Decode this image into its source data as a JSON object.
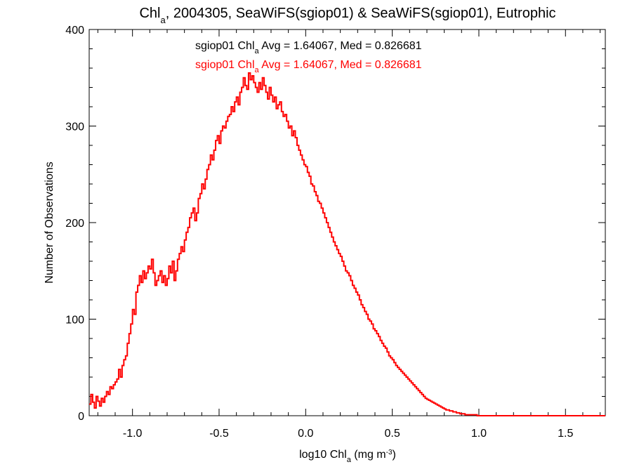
{
  "chart_data": {
    "type": "histogram",
    "title": {
      "prefix": "Chl",
      "subscript": "a",
      "suffix": ", 2004305, SeaWiFS(sgiop01) & SeaWiFS(sgiop01), Eutrophic"
    },
    "xlabel": {
      "prefix": "log10 Chl",
      "subscript": "a",
      "middle": " (mg m",
      "superscript": "-3",
      "suffix": ")"
    },
    "ylabel": "Number of Observations",
    "xlim": [
      -1.25,
      1.73
    ],
    "ylim": [
      0,
      400
    ],
    "x_ticks": [
      "-1.0",
      "-0.5",
      "0.0",
      "0.5",
      "1.0",
      "1.5"
    ],
    "x_tick_values": [
      -1.0,
      -0.5,
      0.0,
      0.5,
      1.0,
      1.5
    ],
    "y_ticks": [
      "0",
      "100",
      "200",
      "300",
      "400"
    ],
    "y_tick_values": [
      0,
      100,
      200,
      300,
      400
    ],
    "annotations": [
      {
        "prefix": "sgiop01 Chl",
        "subscript": "a",
        "suffix": " Avg = 1.64067, Med = 0.826681",
        "color": "#000000"
      },
      {
        "prefix": "sgiop01 Chl",
        "subscript": "a",
        "suffix": " Avg = 1.64067, Med = 0.826681",
        "color": "#ff0000"
      }
    ],
    "series": [
      {
        "color": "#ff0000",
        "bin_start": -1.25,
        "bin_width": 0.01,
        "values": [
          12,
          22,
          14,
          8,
          20,
          15,
          10,
          18,
          14,
          20,
          25,
          22,
          30,
          28,
          32,
          35,
          38,
          48,
          40,
          52,
          58,
          62,
          75,
          85,
          95,
          110,
          105,
          128,
          135,
          145,
          138,
          150,
          142,
          148,
          155,
          152,
          162,
          148,
          135,
          140,
          145,
          150,
          138,
          145,
          135,
          142,
          155,
          148,
          160,
          140,
          150,
          162,
          168,
          175,
          170,
          182,
          190,
          195,
          205,
          210,
          215,
          202,
          210,
          225,
          230,
          240,
          235,
          245,
          255,
          260,
          270,
          265,
          275,
          285,
          290,
          282,
          295,
          300,
          298,
          305,
          310,
          312,
          320,
          315,
          325,
          330,
          322,
          335,
          340,
          350,
          342,
          338,
          355,
          348,
          352,
          345,
          340,
          335,
          345,
          338,
          350,
          342,
          335,
          328,
          340,
          332,
          325,
          330,
          318,
          322,
          325,
          315,
          310,
          312,
          305,
          298,
          300,
          290,
          295,
          288,
          280,
          275,
          270,
          265,
          260,
          258,
          252,
          248,
          240,
          238,
          232,
          228,
          222,
          220,
          215,
          210,
          205,
          200,
          195,
          190,
          185,
          180,
          176,
          172,
          168,
          165,
          160,
          155,
          150,
          148,
          145,
          140,
          135,
          132,
          128,
          125,
          120,
          115,
          112,
          108,
          105,
          100,
          98,
          95,
          90,
          88,
          85,
          82,
          78,
          75,
          72,
          70,
          66,
          62,
          60,
          58,
          55,
          52,
          50,
          48,
          46,
          44,
          42,
          40,
          38,
          36,
          34,
          32,
          30,
          28,
          26,
          24,
          22,
          20,
          18,
          17,
          16,
          15,
          14,
          13,
          12,
          11,
          10,
          9,
          8,
          7,
          6,
          6,
          5,
          5,
          4,
          4,
          3,
          3,
          2,
          2,
          2,
          1,
          1,
          1,
          1,
          1,
          1,
          1,
          0,
          0,
          0,
          0,
          0,
          0,
          0,
          0,
          0,
          0,
          0,
          0,
          0,
          0,
          0,
          0,
          0,
          0,
          0,
          0,
          0,
          0,
          0,
          0,
          0,
          0,
          0,
          0,
          0,
          0,
          0,
          0,
          0,
          0,
          0,
          0,
          0,
          0,
          0,
          0,
          0,
          0,
          0,
          0,
          0,
          0,
          0,
          0,
          0,
          0,
          0,
          0,
          0,
          0,
          0,
          0,
          0,
          0,
          0,
          0,
          0,
          0,
          0,
          0,
          0,
          0,
          0,
          0,
          0,
          0,
          0,
          0,
          0,
          0,
          0,
          0,
          0,
          0,
          0,
          0,
          0,
          0,
          0,
          0,
          0
        ]
      }
    ],
    "grid": false,
    "legend": "none"
  }
}
